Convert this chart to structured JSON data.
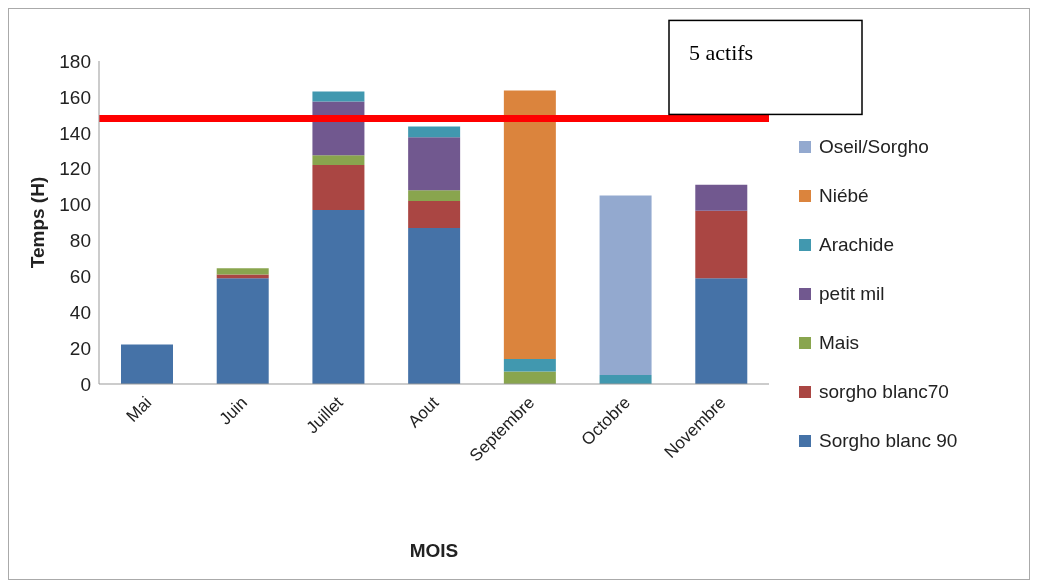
{
  "chart_data": {
    "type": "bar",
    "stacked": true,
    "xlabel": "MOIS",
    "ylabel": "Temps (H)",
    "categories": [
      "Mai",
      "Juin",
      "Juillet",
      "Aout",
      "Septembre",
      "Octobre",
      "Novembre"
    ],
    "series": [
      {
        "name": "Sorgho blanc 90",
        "color": "#4572a7",
        "values": [
          22,
          59,
          97,
          87,
          null,
          null,
          59
        ]
      },
      {
        "name": "sorgho blanc70",
        "color": "#aa4643",
        "values": [
          null,
          2,
          25,
          15,
          null,
          null,
          37.5
        ]
      },
      {
        "name": "Mais",
        "color": "#89a54e",
        "values": [
          null,
          3.5,
          5.5,
          6,
          7,
          null,
          null
        ]
      },
      {
        "name": "petit mil",
        "color": "#71588f",
        "values": [
          null,
          null,
          30,
          29.5,
          null,
          null,
          14.5
        ]
      },
      {
        "name": "Arachide",
        "color": "#4198af",
        "values": [
          null,
          null,
          5.5,
          6,
          7,
          5,
          null
        ]
      },
      {
        "name": "Niébé",
        "color": "#db843d",
        "values": [
          null,
          null,
          null,
          null,
          149.5,
          null,
          null
        ]
      },
      {
        "name": "Oseil/Sorgho",
        "color": "#93a9cf",
        "values": [
          null,
          null,
          null,
          null,
          null,
          100,
          null
        ]
      }
    ],
    "ylim": [
      0,
      180
    ],
    "yticks": [
      0,
      20,
      40,
      60,
      80,
      100,
      120,
      140,
      160,
      180
    ],
    "grid": false,
    "legend": "right",
    "ref_lines": [
      {
        "axis": "y",
        "value": 148,
        "label": "5 actifs",
        "color": "#ff0000"
      }
    ]
  }
}
